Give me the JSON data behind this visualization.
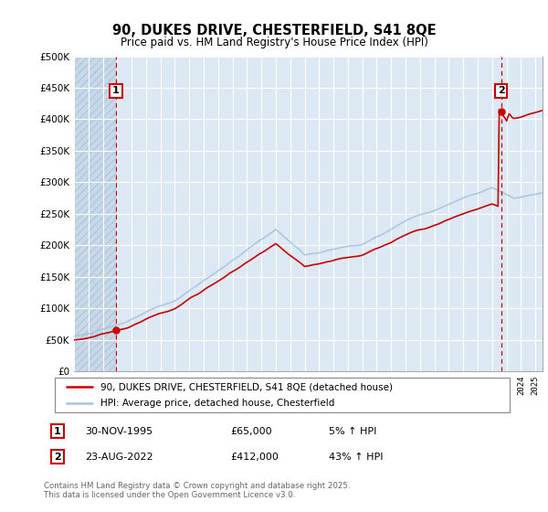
{
  "title": "90, DUKES DRIVE, CHESTERFIELD, S41 8QE",
  "subtitle": "Price paid vs. HM Land Registry's House Price Index (HPI)",
  "ylim": [
    0,
    500000
  ],
  "yticks": [
    0,
    50000,
    100000,
    150000,
    200000,
    250000,
    300000,
    350000,
    400000,
    450000,
    500000
  ],
  "hpi_color": "#a8c4e0",
  "price_color": "#cc0000",
  "sale1_t": 1995.917,
  "sale1_price": 65000,
  "sale2_t": 2022.625,
  "sale2_price": 412000,
  "legend_line1": "90, DUKES DRIVE, CHESTERFIELD, S41 8QE (detached house)",
  "legend_line2": "HPI: Average price, detached house, Chesterfield",
  "table_row1_num": "1",
  "table_row1_date": "30-NOV-1995",
  "table_row1_price": "£65,000",
  "table_row1_hpi": "5% ↑ HPI",
  "table_row2_num": "2",
  "table_row2_date": "23-AUG-2022",
  "table_row2_price": "£412,000",
  "table_row2_hpi": "43% ↑ HPI",
  "footer": "Contains HM Land Registry data © Crown copyright and database right 2025.\nThis data is licensed under the Open Government Licence v3.0.",
  "bg_color": "#ffffff",
  "chart_bg_color": "#dce9f5",
  "grid_color": "#ffffff",
  "hatch_color": "#c8d8e8"
}
